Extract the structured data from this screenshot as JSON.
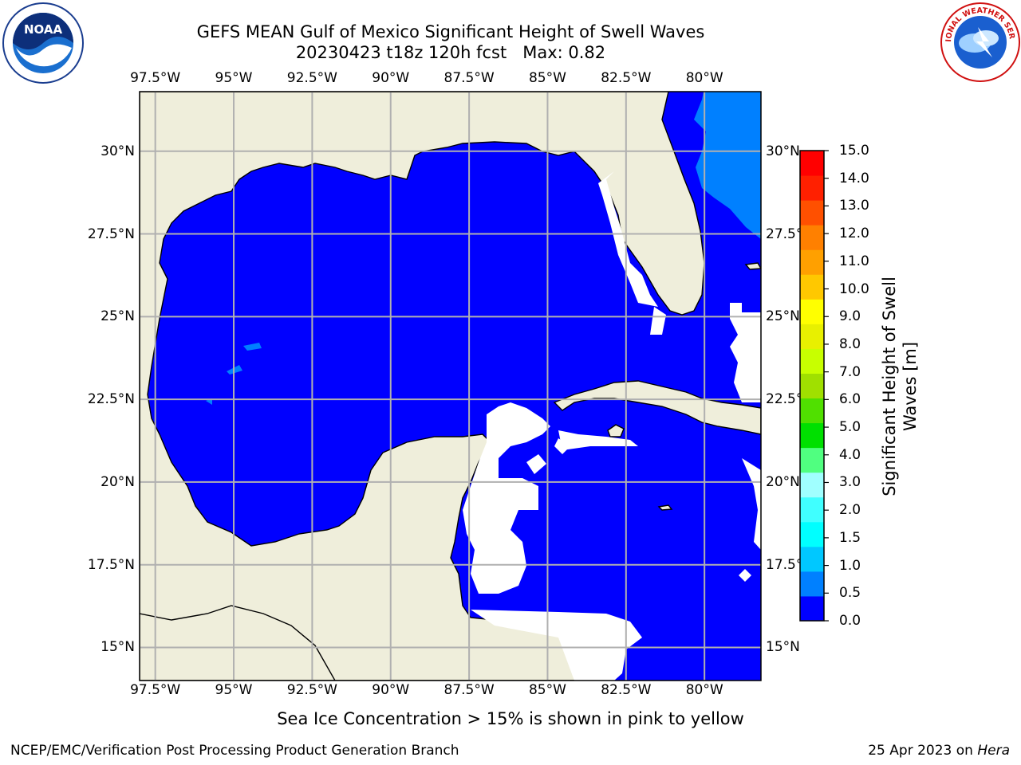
{
  "header": {
    "title_line1": "GEFS MEAN Gulf of Mexico Significant Height of Swell Waves",
    "title_line2": "20230423 t18z 120h fcst   Max: 0.82"
  },
  "logos": {
    "left": {
      "text": "NOAA",
      "ring_text": "NATIONAL OCEANIC AND ATMOSPHERIC ADMINISTRATION · U.S. DEPARTMENT OF COMMERCE"
    },
    "right": {
      "ring_text": "NATIONAL WEATHER SERVICE"
    }
  },
  "map": {
    "lon_labels": [
      "97.5°W",
      "95°W",
      "92.5°W",
      "90°W",
      "87.5°W",
      "85°W",
      "82.5°W",
      "80°W"
    ],
    "lat_labels": [
      "30°N",
      "27.5°N",
      "25°N",
      "22.5°N",
      "20°N",
      "17.5°N",
      "15°N"
    ],
    "lon_range": [
      -98,
      -78.2
    ],
    "lat_range": [
      14,
      31.8
    ]
  },
  "colorbar": {
    "label": "Significant Height of Swell Waves [m]",
    "label_line1": "Significant Height of Swell",
    "label_line2": "Waves [m]",
    "ticks": [
      "0.0",
      "0.5",
      "1.0",
      "1.5",
      "2.0",
      "3.0",
      "4.0",
      "5.0",
      "6.0",
      "7.0",
      "8.0",
      "9.0",
      "10.0",
      "11.0",
      "12.0",
      "13.0",
      "14.0",
      "15.0"
    ],
    "colors": [
      "#0000ff",
      "#0080ff",
      "#00c8ff",
      "#00ffff",
      "#40ffff",
      "#a0ffff",
      "#50ff80",
      "#00e000",
      "#50e000",
      "#a0e000",
      "#c8ff00",
      "#e8f000",
      "#ffff00",
      "#ffc800",
      "#ffa000",
      "#ff8000",
      "#ff5000",
      "#ff2000",
      "#ff0000"
    ]
  },
  "ice_note": "Sea Ice Concentration > 15% is shown in pink to yellow",
  "footer": {
    "left": "NCEP/EMC/Verification Post Processing Product Generation Branch",
    "right_date": "25 Apr 2023 on ",
    "right_host": "Hera"
  }
}
